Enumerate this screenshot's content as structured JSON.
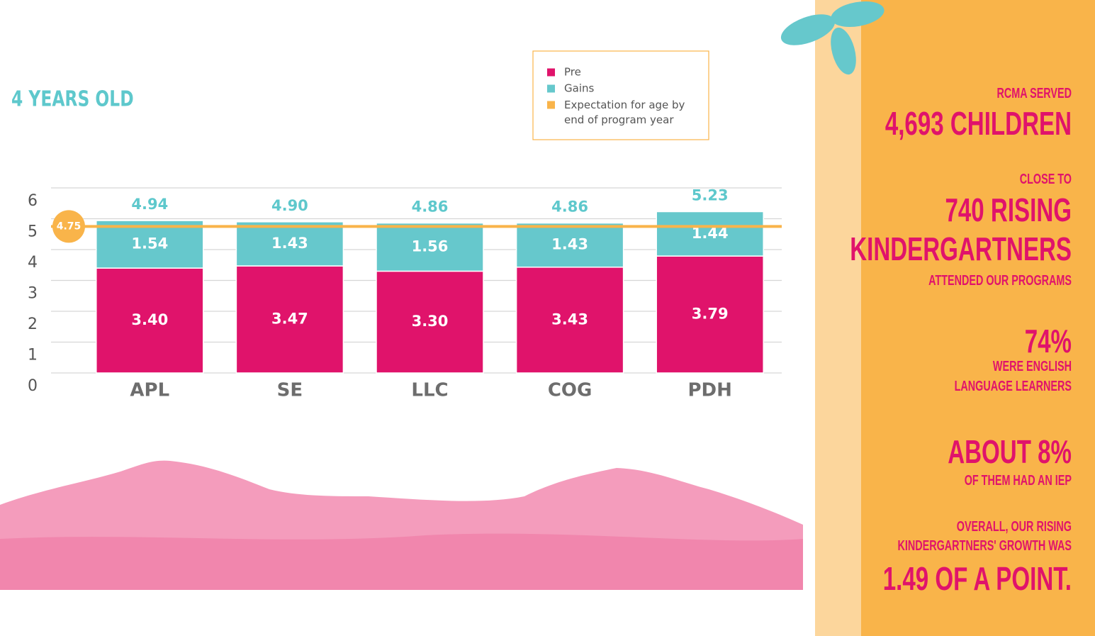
{
  "chart_data": {
    "type": "stacked_bar",
    "subtitle": "4 YEARS OLD",
    "categories": [
      "APL",
      "SE",
      "LLC",
      "COG",
      "PDH"
    ],
    "series": [
      {
        "name": "Pre",
        "color": "#e0136b",
        "values": [
          3.4,
          3.47,
          3.3,
          3.43,
          3.79
        ],
        "value_labels": [
          "3.40",
          "3.47",
          "3.30",
          "3.43",
          "3.79"
        ]
      },
      {
        "name": "Gains",
        "color": "#66c8cc",
        "values": [
          1.54,
          1.43,
          1.56,
          1.43,
          1.44
        ]
      }
    ],
    "totals": {
      "values": [
        4.94,
        4.9,
        4.86,
        4.86,
        5.23
      ],
      "value_labels": [
        "4.94",
        "4.90",
        "4.86",
        "4.86",
        "5.23"
      ]
    },
    "reference_line": {
      "name": "Expectation for age by end of program year",
      "value": 4.75,
      "color": "#f9b44a"
    },
    "ylim": [
      0,
      6
    ],
    "yticks": [
      0,
      1,
      2,
      3,
      4,
      5,
      6
    ],
    "grid": true
  },
  "panel": {
    "lines": [
      "RCMA SERVED",
      "4,693 CHILDREN",
      "CLOSE TO",
      "740 RISING",
      "KINDERGARTNERS",
      "ATTENDED OUR PROGRAMS",
      "74%",
      "WERE ENGLISH",
      "LANGUAGE LEARNERS",
      "ABOUT 8%",
      "OF THEM HAD AN IEP",
      "OVERALL, OUR RISING",
      "KINDERGARTNERS' GROWTH WAS",
      "1.49 OF A POINT."
    ]
  }
}
